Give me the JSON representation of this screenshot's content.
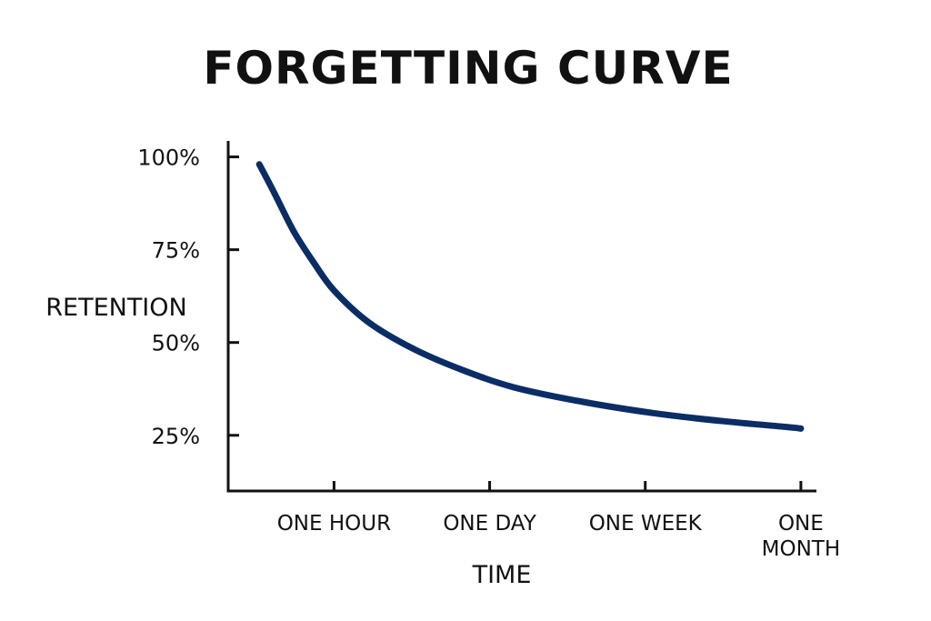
{
  "chart_data": {
    "type": "line",
    "title": "FORGETTING CURVE",
    "xlabel": "TIME",
    "ylabel": "RETENTION",
    "x_ticks": [
      {
        "position": 1,
        "lines": [
          "ONE HOUR"
        ]
      },
      {
        "position": 2,
        "lines": [
          "ONE DAY"
        ]
      },
      {
        "position": 3,
        "lines": [
          "ONE WEEK"
        ]
      },
      {
        "position": 4,
        "lines": [
          "ONE",
          "MONTH"
        ]
      }
    ],
    "y_ticks": [
      {
        "value": 100,
        "label": "100%"
      },
      {
        "value": 75,
        "label": "75%"
      },
      {
        "value": 50,
        "label": "50%"
      },
      {
        "value": 25,
        "label": "25%"
      }
    ],
    "xlim": [
      0.32,
      4.1
    ],
    "ylim": [
      10,
      104.3
    ],
    "grid": false,
    "series": [
      {
        "color": "#0b2d66",
        "x": [
          0.52,
          0.62,
          0.74,
          0.87,
          1.0,
          1.22,
          1.5,
          1.8,
          2.15,
          2.6,
          3.05,
          3.5,
          3.92,
          4.0
        ],
        "y": [
          98,
          90,
          80,
          71.5,
          64,
          55.5,
          48.5,
          43,
          38,
          34,
          31,
          28.8,
          27.2,
          26.8
        ]
      }
    ]
  }
}
